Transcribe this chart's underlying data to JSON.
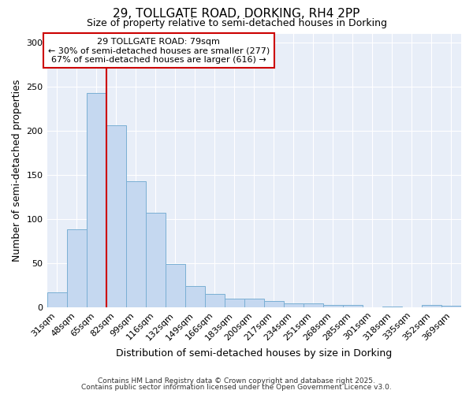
{
  "title1": "29, TOLLGATE ROAD, DORKING, RH4 2PP",
  "title2": "Size of property relative to semi-detached houses in Dorking",
  "xlabel": "Distribution of semi-detached houses by size in Dorking",
  "ylabel": "Number of semi-detached properties",
  "categories": [
    "31sqm",
    "48sqm",
    "65sqm",
    "82sqm",
    "99sqm",
    "116sqm",
    "132sqm",
    "149sqm",
    "166sqm",
    "183sqm",
    "200sqm",
    "217sqm",
    "234sqm",
    "251sqm",
    "268sqm",
    "285sqm",
    "301sqm",
    "318sqm",
    "335sqm",
    "352sqm",
    "369sqm"
  ],
  "values": [
    17,
    88,
    243,
    206,
    143,
    107,
    49,
    24,
    15,
    10,
    10,
    7,
    4,
    4,
    3,
    3,
    0,
    1,
    0,
    3,
    2
  ],
  "bar_color": "#c5d8f0",
  "bar_edgecolor": "#7aafd4",
  "plot_background_color": "#e8eef8",
  "figure_background_color": "#ffffff",
  "grid_color": "#ffffff",
  "red_line_index": 3,
  "property_label": "29 TOLLGATE ROAD: 79sqm",
  "smaller_text": "← 30% of semi-detached houses are smaller (277)",
  "larger_text": "67% of semi-detached houses are larger (616) →",
  "annotation_box_edgecolor": "#cc0000",
  "annotation_box_facecolor": "#ffffff",
  "red_line_color": "#cc0000",
  "ylim": [
    0,
    310
  ],
  "yticks": [
    0,
    50,
    100,
    150,
    200,
    250,
    300
  ],
  "footer1": "Contains HM Land Registry data © Crown copyright and database right 2025.",
  "footer2": "Contains public sector information licensed under the Open Government Licence v3.0."
}
